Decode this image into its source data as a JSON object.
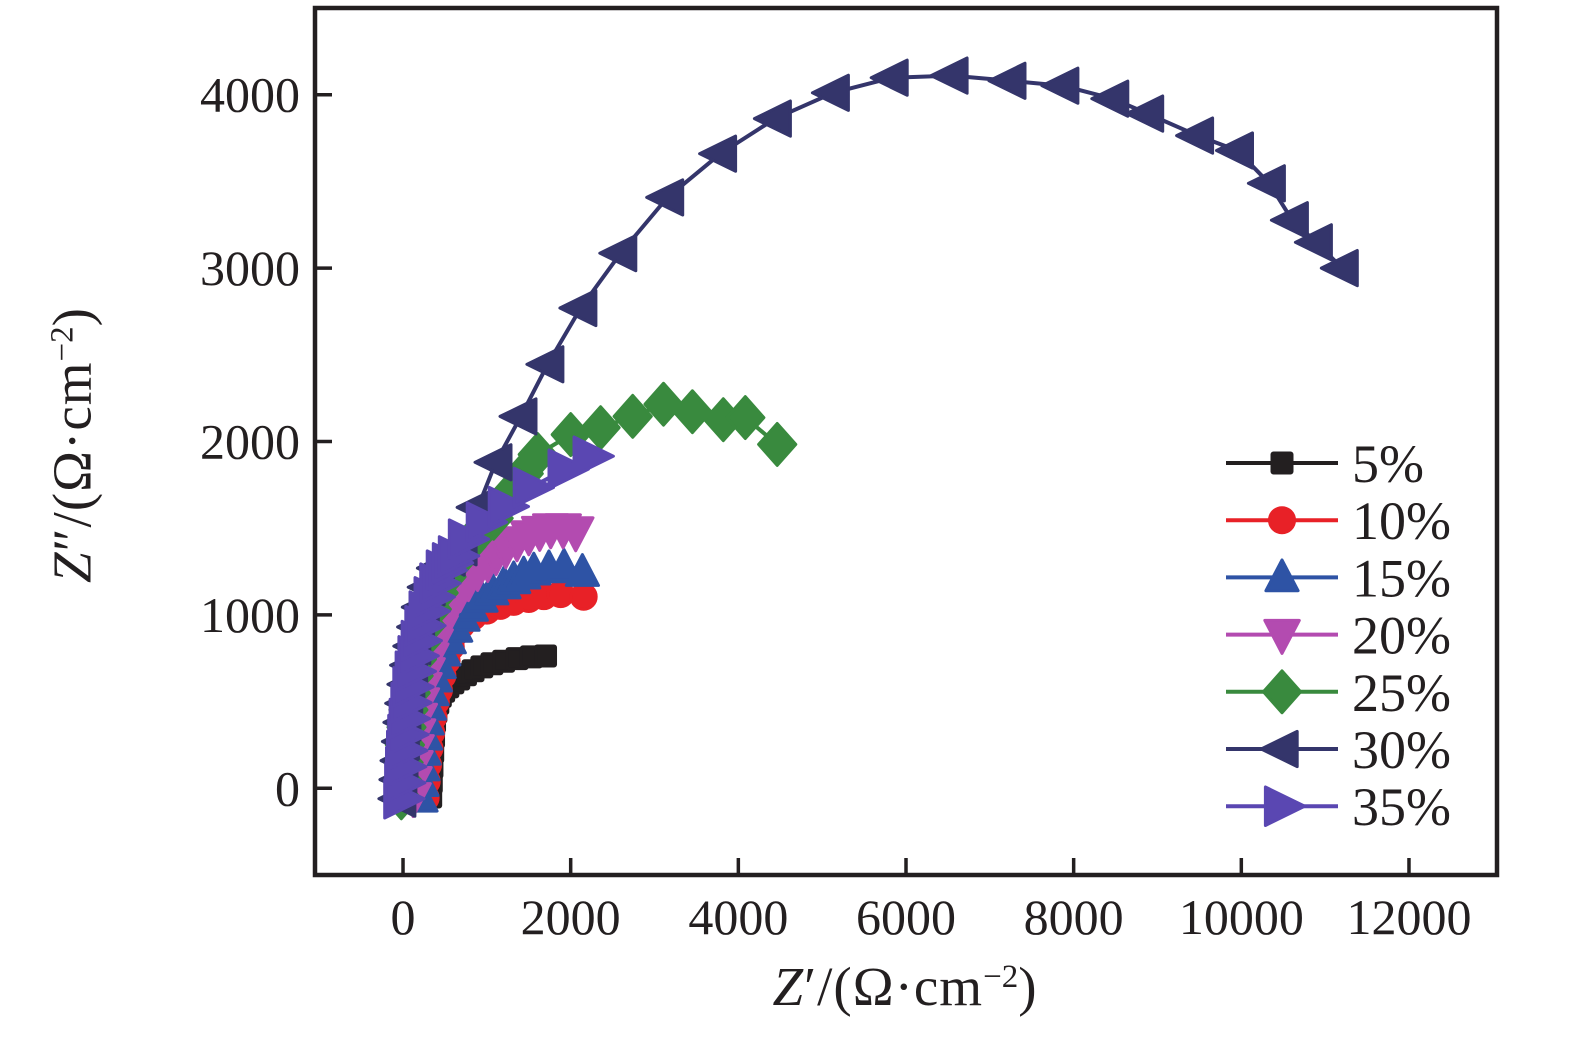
{
  "figure": {
    "background": "#ffffff",
    "text_color": "#231f20",
    "frame_color": "#231f20"
  },
  "axis_titles": {
    "x": {
      "var": "Z",
      "prime": "′",
      "unit_open": "/(Ω·cm",
      "exponent": "−2",
      "unit_close": ")"
    },
    "y": {
      "var": "Z",
      "prime": "″",
      "unit_open": "/(Ω·cm",
      "exponent": "−2",
      "unit_close": ")"
    }
  },
  "chart_data": {
    "type": "scatter",
    "subtype": "nyquist-impedance-plot",
    "title": "",
    "xlabel": "Z′/(Ω·cm−2)",
    "ylabel": "Z″/(Ω·cm−2)",
    "xlim": [
      -1050,
      13050
    ],
    "ylim": [
      -500,
      4500
    ],
    "xticks": [
      0,
      2000,
      4000,
      6000,
      8000,
      10000,
      12000
    ],
    "yticks": [
      0,
      1000,
      2000,
      3000,
      4000
    ],
    "grid": false,
    "legend_position": "right",
    "series": [
      {
        "label": "5%",
        "color": "#231f20",
        "marker": "square",
        "marker_size": 10,
        "points": [
          [
            330,
            -50
          ],
          [
            337,
            35
          ],
          [
            345,
            122
          ],
          [
            354,
            210
          ],
          [
            364,
            298
          ],
          [
            376,
            385
          ],
          [
            392,
            440
          ],
          [
            415,
            490
          ],
          [
            445,
            530
          ],
          [
            485,
            560
          ],
          [
            535,
            585
          ],
          [
            595,
            608
          ],
          [
            665,
            630
          ],
          [
            745,
            655
          ],
          [
            835,
            678
          ],
          [
            940,
            700
          ],
          [
            1060,
            718
          ],
          [
            1200,
            733
          ],
          [
            1360,
            748
          ],
          [
            1530,
            758
          ],
          [
            1700,
            763
          ]
        ]
      },
      {
        "label": "10%",
        "color": "#e82127",
        "marker": "circle",
        "marker_size": 12.5,
        "points": [
          [
            270,
            -55
          ],
          [
            283,
            40
          ],
          [
            298,
            135
          ],
          [
            316,
            230
          ],
          [
            337,
            322
          ],
          [
            362,
            412
          ],
          [
            392,
            500
          ],
          [
            428,
            565
          ],
          [
            470,
            650
          ],
          [
            520,
            735
          ],
          [
            570,
            815
          ],
          [
            620,
            895
          ],
          [
            700,
            945
          ],
          [
            835,
            990
          ],
          [
            1000,
            1025
          ],
          [
            1160,
            1052
          ],
          [
            1320,
            1075
          ],
          [
            1500,
            1092
          ],
          [
            1680,
            1108
          ],
          [
            1880,
            1120
          ],
          [
            2155,
            1105
          ]
        ]
      },
      {
        "label": "15%",
        "color": "#2e53a5",
        "marker": "triangle-up",
        "marker_size": 14,
        "points": [
          [
            215,
            -55
          ],
          [
            225,
            35
          ],
          [
            237,
            125
          ],
          [
            251,
            215
          ],
          [
            268,
            303
          ],
          [
            289,
            390
          ],
          [
            315,
            475
          ],
          [
            347,
            558
          ],
          [
            386,
            638
          ],
          [
            432,
            715
          ],
          [
            487,
            788
          ],
          [
            552,
            858
          ],
          [
            628,
            925
          ],
          [
            715,
            988
          ],
          [
            815,
            1046
          ],
          [
            930,
            1098
          ],
          [
            1060,
            1140
          ],
          [
            1205,
            1175
          ],
          [
            1320,
            1205
          ],
          [
            1440,
            1232
          ],
          [
            1560,
            1255
          ],
          [
            1740,
            1268
          ],
          [
            1920,
            1276
          ],
          [
            2140,
            1247
          ]
        ]
      },
      {
        "label": "20%",
        "color": "#b34bb0",
        "marker": "triangle-down",
        "marker_size": 15,
        "points": [
          [
            120,
            -55
          ],
          [
            130,
            38
          ],
          [
            142,
            130
          ],
          [
            156,
            222
          ],
          [
            173,
            313
          ],
          [
            194,
            403
          ],
          [
            219,
            492
          ],
          [
            250,
            580
          ],
          [
            287,
            666
          ],
          [
            331,
            750
          ],
          [
            383,
            832
          ],
          [
            443,
            911
          ],
          [
            512,
            987
          ],
          [
            591,
            1059
          ],
          [
            680,
            1127
          ],
          [
            780,
            1190
          ],
          [
            890,
            1248
          ],
          [
            1010,
            1300
          ],
          [
            1110,
            1340
          ],
          [
            1226,
            1380
          ],
          [
            1360,
            1420
          ],
          [
            1500,
            1455
          ],
          [
            1630,
            1480
          ],
          [
            1762,
            1495
          ],
          [
            1910,
            1495
          ],
          [
            2060,
            1478
          ]
        ]
      },
      {
        "label": "25%",
        "color": "#398a3e",
        "marker": "diamond",
        "marker_size": 15.5,
        "points": [
          [
            -20,
            -55
          ],
          [
            -8,
            45
          ],
          [
            6,
            148
          ],
          [
            22,
            250
          ],
          [
            41,
            352
          ],
          [
            64,
            452
          ],
          [
            92,
            550
          ],
          [
            126,
            648
          ],
          [
            167,
            745
          ],
          [
            216,
            842
          ],
          [
            274,
            938
          ],
          [
            343,
            1033
          ],
          [
            424,
            1127
          ],
          [
            519,
            1219
          ],
          [
            630,
            1309
          ],
          [
            759,
            1396
          ],
          [
            908,
            1479
          ],
          [
            1080,
            1557
          ],
          [
            1278,
            1700
          ],
          [
            1440,
            1815
          ],
          [
            1607,
            1925
          ],
          [
            2000,
            2040
          ],
          [
            2357,
            2080
          ],
          [
            2740,
            2145
          ],
          [
            3107,
            2215
          ],
          [
            3452,
            2172
          ],
          [
            3820,
            2126
          ],
          [
            4083,
            2138
          ],
          [
            4464,
            1983
          ]
        ]
      },
      {
        "label": "30%",
        "color": "#34356b",
        "marker": "triangle-left",
        "marker_size": 16,
        "points": [
          [
            -40,
            -60
          ],
          [
            -28,
            50
          ],
          [
            -14,
            160
          ],
          [
            2,
            270
          ],
          [
            20,
            380
          ],
          [
            42,
            490
          ],
          [
            68,
            600
          ],
          [
            100,
            710
          ],
          [
            138,
            820
          ],
          [
            184,
            930
          ],
          [
            240,
            1045
          ],
          [
            310,
            1160
          ],
          [
            420,
            1270
          ],
          [
            550,
            1330
          ],
          [
            690,
            1390
          ],
          [
            893,
            1620
          ],
          [
            1107,
            1880
          ],
          [
            1405,
            2145
          ],
          [
            1726,
            2445
          ],
          [
            2119,
            2770
          ],
          [
            2595,
            3086
          ],
          [
            3155,
            3408
          ],
          [
            3786,
            3660
          ],
          [
            4440,
            3862
          ],
          [
            5131,
            4011
          ],
          [
            5833,
            4098
          ],
          [
            6548,
            4110
          ],
          [
            7238,
            4080
          ],
          [
            7869,
            4052
          ],
          [
            8464,
            3977
          ],
          [
            8881,
            3891
          ],
          [
            9476,
            3764
          ],
          [
            9952,
            3678
          ],
          [
            10333,
            3489
          ],
          [
            10607,
            3276
          ],
          [
            10893,
            3149
          ],
          [
            11202,
            3000
          ]
        ]
      },
      {
        "label": "35%",
        "color": "#5a47b2",
        "marker": "triangle-right",
        "marker_size": 17.5,
        "points": [
          [
            -20,
            -60
          ],
          [
            -10,
            32
          ],
          [
            1,
            125
          ],
          [
            13,
            218
          ],
          [
            27,
            310
          ],
          [
            44,
            402
          ],
          [
            64,
            494
          ],
          [
            88,
            585
          ],
          [
            116,
            675
          ],
          [
            149,
            764
          ],
          [
            187,
            852
          ],
          [
            231,
            938
          ],
          [
            282,
            1022
          ],
          [
            341,
            1104
          ],
          [
            409,
            1183
          ],
          [
            487,
            1258
          ],
          [
            560,
            1300
          ],
          [
            631,
            1340
          ],
          [
            750,
            1437
          ],
          [
            964,
            1535
          ],
          [
            1226,
            1625
          ],
          [
            1524,
            1735
          ],
          [
            1940,
            1840
          ],
          [
            2238,
            1915
          ]
        ]
      }
    ]
  }
}
